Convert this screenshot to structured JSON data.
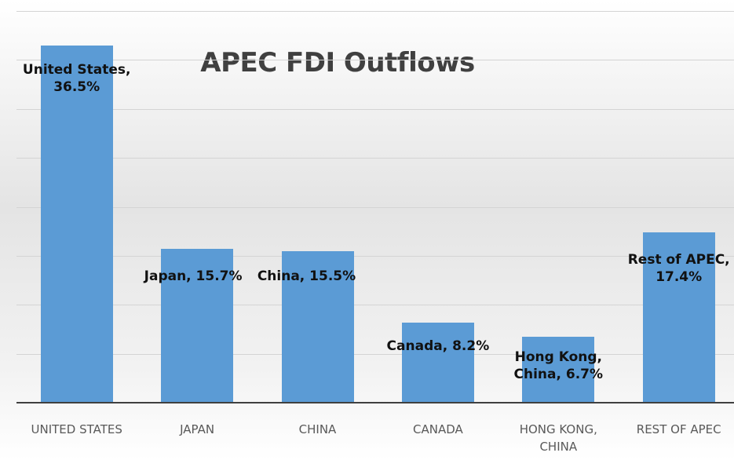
{
  "chart_data": {
    "type": "bar",
    "title": "APEC FDI Outflows",
    "categories": [
      "UNITED STATES",
      "JAPAN",
      "CHINA",
      "CANADA",
      "HONG KONG, CHINA",
      "REST OF APEC"
    ],
    "values": [
      36.5,
      15.7,
      15.5,
      8.2,
      6.7,
      17.4
    ],
    "value_labels": [
      "United States, 36.5%",
      "Japan, 15.7%",
      "China, 15.5%",
      "Canada, 8.2%",
      "Hong Kong, China, 6.7%",
      "Rest of APEC, 17.4%"
    ],
    "color": "#5b9bd5",
    "ylim": [
      0,
      40
    ],
    "yticks": [
      0,
      5,
      10,
      15,
      20,
      25,
      30,
      35,
      40
    ],
    "grid": true
  }
}
